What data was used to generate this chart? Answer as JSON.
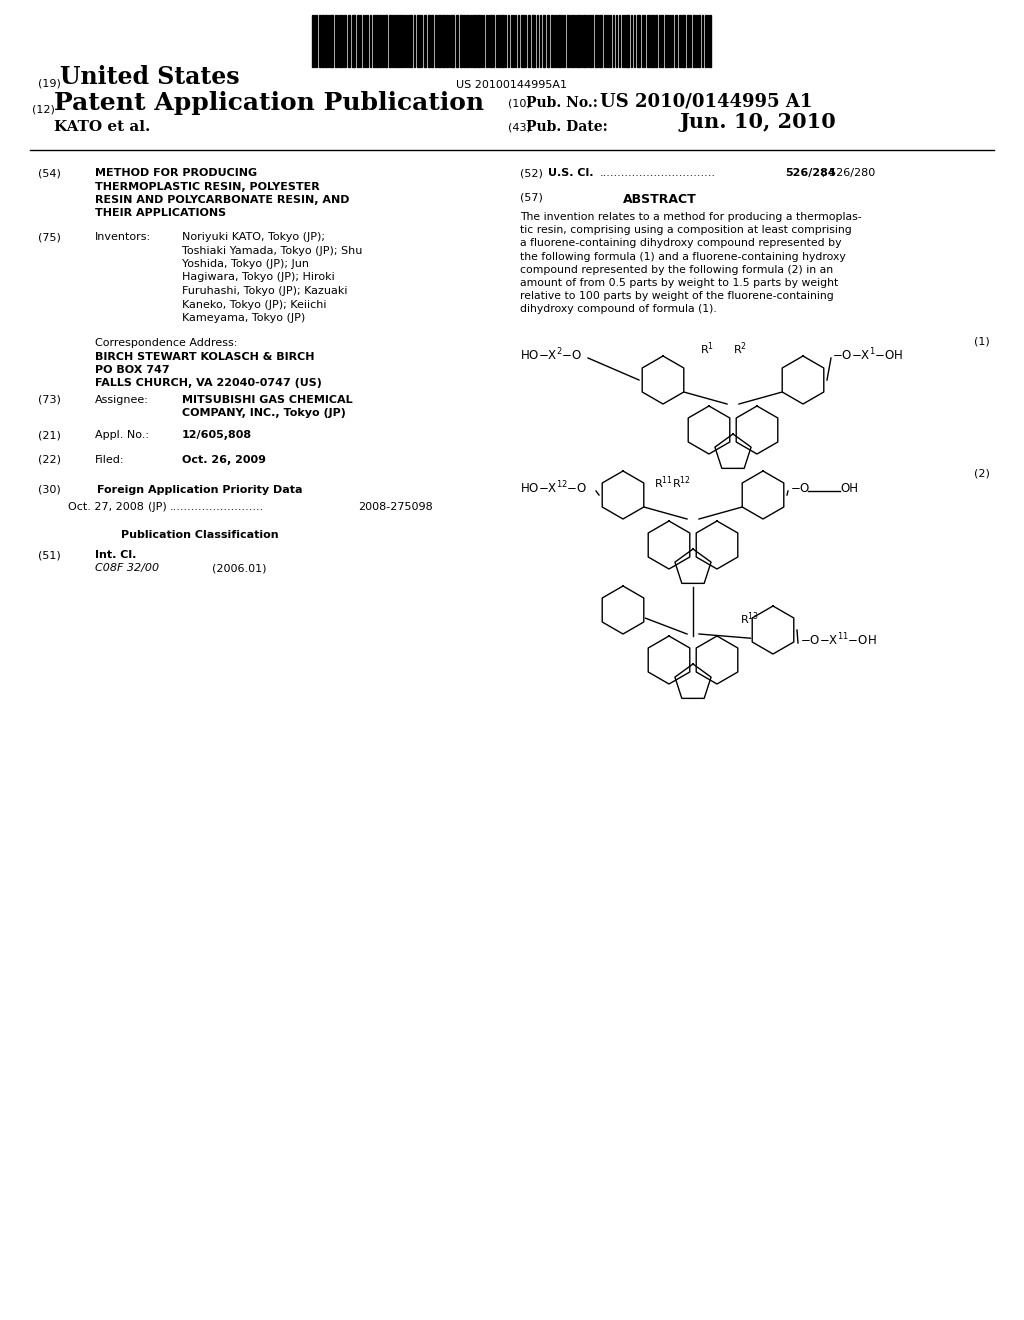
{
  "bg_color": "#ffffff",
  "barcode_text": "US 20100144995A1",
  "header_19": "(19)",
  "header_19_text": "United States",
  "header_12": "(12)",
  "header_12_text": "Patent Application Publication",
  "header_10_label": "(10)",
  "header_10_text": "Pub. No.:",
  "header_10_num": "US 2010/0144995 A1",
  "header_43_label": "(43)",
  "header_43_text": "Pub. Date:",
  "header_43_date": "Jun. 10, 2010",
  "header_kato": "KATO et al.",
  "field_54_num": "(54)",
  "field_54_title_lines": [
    "METHOD FOR PRODUCING",
    "THERMOPLASTIC RESIN, POLYESTER",
    "RESIN AND POLYCARBONATE RESIN, AND",
    "THEIR APPLICATIONS"
  ],
  "field_75_num": "(75)",
  "field_75_label": "Inventors:",
  "field_75_lines": [
    "Noriyuki KATO, Tokyo (JP);",
    "Toshiaki Yamada, Tokyo (JP); Shu",
    "Yoshida, Tokyo (JP); Jun",
    "Hagiwara, Tokyo (JP); Hiroki",
    "Furuhashi, Tokyo (JP); Kazuaki",
    "Kaneko, Tokyo (JP); Keiichi",
    "Kameyama, Tokyo (JP)"
  ],
  "corr_label": "Correspondence Address:",
  "corr_line1": "BIRCH STEWART KOLASCH & BIRCH",
  "corr_line2": "PO BOX 747",
  "corr_line3": "FALLS CHURCH, VA 22040-0747 (US)",
  "field_73_num": "(73)",
  "field_73_label": "Assignee:",
  "field_73_line1": "MITSUBISHI GAS CHEMICAL",
  "field_73_line2": "COMPANY, INC., Tokyo (JP)",
  "field_21_num": "(21)",
  "field_21_label": "Appl. No.:",
  "field_21_text": "12/605,808",
  "field_22_num": "(22)",
  "field_22_label": "Filed:",
  "field_22_text": "Oct. 26, 2009",
  "field_30_num": "(30)",
  "field_30_label": "Foreign Application Priority Data",
  "field_30_date": "Oct. 27, 2008",
  "field_30_country": "(JP)",
  "field_30_number": "2008-275098",
  "pub_class_label": "Publication Classification",
  "field_51_num": "(51)",
  "field_51_label": "Int. Cl.",
  "field_51_class": "C08F 32/00",
  "field_51_year": "(2006.01)",
  "field_52_num": "(52)",
  "field_52_label": "U.S. Cl.",
  "field_52_value": "526/284",
  "field_52_value2": "; 526/280",
  "field_57_num": "(57)",
  "field_57_label": "ABSTRACT",
  "abstract_lines": [
    "The invention relates to a method for producing a thermoplas-",
    "tic resin, comprising using a composition at least comprising",
    "a fluorene-containing dihydroxy compound represented by",
    "the following formula (1) and a fluorene-containing hydroxy",
    "compound represented by the following formula (2) in an",
    "amount of from 0.5 parts by weight to 1.5 parts by weight",
    "relative to 100 parts by weight of the fluorene-containing",
    "dihydroxy compound of formula (1)."
  ]
}
